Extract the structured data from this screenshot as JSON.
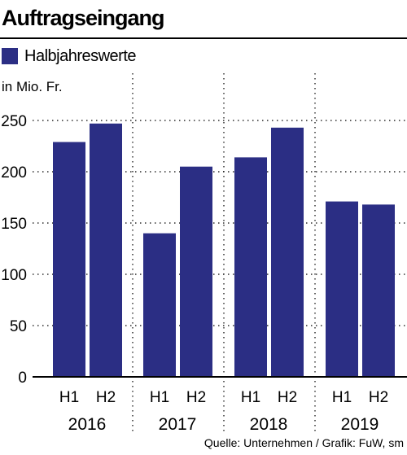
{
  "header": {
    "title": "Auftragseingang",
    "legend_label": "Halbjahreswerte",
    "unit_label": "in Mio. Fr."
  },
  "footer": {
    "source": "Quelle: Unternehmen / Grafik: FuW, sm"
  },
  "colors": {
    "bar": "#2b2e84",
    "text": "#000000",
    "grid": "#000000"
  },
  "chart_data": {
    "type": "bar",
    "title": "Auftragseingang",
    "legend": [
      "Halbjahreswerte"
    ],
    "ylabel": "in Mio. Fr.",
    "ylim": [
      0,
      250
    ],
    "yticks": [
      0,
      50,
      100,
      150,
      200,
      250
    ],
    "grid": "dotted horizontal",
    "groups": [
      {
        "year": "2016",
        "bars": [
          {
            "label": "H1",
            "value": 229
          },
          {
            "label": "H2",
            "value": 247
          }
        ]
      },
      {
        "year": "2017",
        "bars": [
          {
            "label": "H1",
            "value": 140
          },
          {
            "label": "H2",
            "value": 205
          }
        ]
      },
      {
        "year": "2018",
        "bars": [
          {
            "label": "H1",
            "value": 214
          },
          {
            "label": "H2",
            "value": 243
          }
        ]
      },
      {
        "year": "2019",
        "bars": [
          {
            "label": "H1",
            "value": 171
          },
          {
            "label": "H2",
            "value": 168
          }
        ]
      }
    ]
  }
}
